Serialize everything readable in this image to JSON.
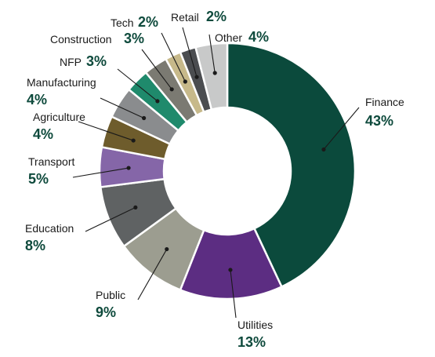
{
  "chart_data": {
    "type": "pie",
    "title": "",
    "donut": true,
    "categories": [
      "Finance",
      "Utilities",
      "Public",
      "Education",
      "Transport",
      "Agriculture",
      "Manufacturing",
      "NFP",
      "Construction",
      "Tech",
      "Retail",
      "Other"
    ],
    "values": [
      43,
      13,
      9,
      8,
      5,
      4,
      4,
      3,
      3,
      2,
      2,
      4
    ],
    "labels": [
      "43%",
      "13%",
      "9%",
      "8%",
      "5%",
      "4%",
      "4%",
      "3%",
      "3%",
      "2%",
      "2%",
      "4%"
    ],
    "colors": [
      "#0b4a3c",
      "#5c2d82",
      "#9c9d90",
      "#5f6263",
      "#8566a8",
      "#6e5c2c",
      "#8a8c8e",
      "#1f8a6c",
      "#7b7a72",
      "#c7b98a",
      "#4b4d50",
      "#c8c9c9"
    ],
    "legend": "none",
    "label_color": "#0e4a3c"
  }
}
